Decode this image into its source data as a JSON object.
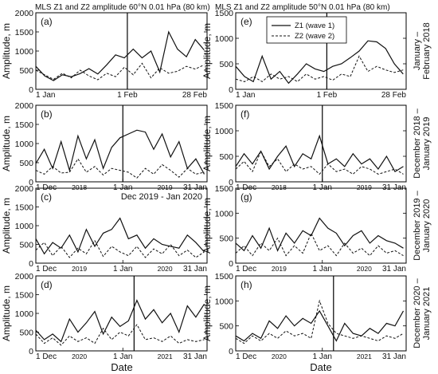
{
  "figure": {
    "titles": [
      "MLS Z1 and Z2 amplitude 60°N  0.01 hPa (80 km)",
      "MLS Z1 and Z2 amplitude 50°N  0.01 hPa (80 km)"
    ],
    "ylabel": "Amplitude, m",
    "xlabel": "Date",
    "row_labels": [
      "January – February 2018",
      "December 2018 – January 2019",
      "December 2019 – January 2020",
      "December 2020 – January 2021"
    ],
    "legend": [
      "Z1 (wave 1)",
      "Z2 (wave 2)"
    ],
    "colors": {
      "z1": "#111111",
      "z2": "#111111",
      "frame": "#000000"
    }
  },
  "chart_data": [
    {
      "type": "line",
      "panel": "(a)",
      "annotation": "",
      "ylim": [
        0,
        2000
      ],
      "yticks": [
        0,
        500,
        1000,
        1500,
        2000
      ],
      "xticks": [
        "1 Jan",
        "1 Feb",
        "28 Feb"
      ],
      "year_labels": [],
      "event_line": "1 Feb",
      "series": [
        {
          "name": "Z1 (wave 1)",
          "x": [
            0,
            3,
            6,
            9,
            12,
            15,
            18,
            21,
            24,
            27,
            30,
            33,
            36,
            39,
            42,
            45,
            48,
            51,
            54,
            57
          ],
          "values": [
            600,
            350,
            230,
            380,
            330,
            410,
            540,
            400,
            640,
            900,
            820,
            1050,
            820,
            1000,
            450,
            1500,
            1050,
            850,
            1300,
            1030
          ]
        },
        {
          "name": "Z2 (wave 2)",
          "x": [
            0,
            3,
            6,
            9,
            12,
            15,
            18,
            21,
            24,
            27,
            30,
            33,
            36,
            39,
            42,
            45,
            48,
            51,
            54,
            57
          ],
          "values": [
            500,
            380,
            260,
            420,
            300,
            500,
            350,
            250,
            420,
            330,
            580,
            380,
            680,
            300,
            560,
            420,
            470,
            600,
            530,
            640
          ]
        }
      ]
    },
    {
      "type": "line",
      "panel": "(b)",
      "annotation": "",
      "ylim": [
        0,
        2000
      ],
      "yticks": [
        0,
        500,
        1000,
        1500,
        2000
      ],
      "xticks": [
        "1 Dec",
        "1 Jan",
        "31 Jan"
      ],
      "year_labels": [
        "2018",
        "2019"
      ],
      "event_line": "1 Jan",
      "series": [
        {
          "name": "Z1 (wave 1)",
          "x": [
            0,
            3,
            6,
            9,
            12,
            15,
            18,
            21,
            24,
            27,
            30,
            33,
            36,
            39,
            42,
            45,
            48,
            51,
            54,
            57,
            60
          ],
          "values": [
            480,
            850,
            350,
            1050,
            300,
            1200,
            600,
            1100,
            350,
            900,
            1150,
            1250,
            1350,
            1300,
            850,
            1250,
            650,
            1050,
            350,
            600,
            200
          ]
        },
        {
          "name": "Z2 (wave 2)",
          "x": [
            0,
            3,
            6,
            9,
            12,
            15,
            18,
            21,
            24,
            27,
            30,
            33,
            36,
            39,
            42,
            45,
            48,
            51,
            54,
            57,
            60
          ],
          "values": [
            300,
            200,
            400,
            230,
            250,
            600,
            250,
            400,
            180,
            350,
            300,
            250,
            100,
            350,
            200,
            450,
            300,
            120,
            350,
            200,
            250
          ]
        }
      ]
    },
    {
      "type": "line",
      "panel": "(c)",
      "annotation": "Dec 2019 - Jan 2020",
      "ylim": [
        0,
        2000
      ],
      "yticks": [
        0,
        500,
        1000,
        1500,
        2000
      ],
      "xticks": [
        "1 Dec",
        "1 Jan",
        "31 Jan"
      ],
      "year_labels": [
        "2019",
        "2020"
      ],
      "event_line": "",
      "series": [
        {
          "name": "Z1 (wave 1)",
          "x": [
            0,
            3,
            6,
            9,
            12,
            15,
            18,
            21,
            24,
            27,
            30,
            33,
            36,
            39,
            42,
            45,
            48,
            51,
            54,
            57,
            60
          ],
          "values": [
            650,
            250,
            550,
            400,
            750,
            300,
            900,
            450,
            800,
            900,
            1200,
            650,
            750,
            400,
            650,
            500,
            450,
            400,
            750,
            550,
            300
          ]
        },
        {
          "name": "Z2 (wave 2)",
          "x": [
            0,
            3,
            6,
            9,
            12,
            15,
            18,
            21,
            24,
            27,
            30,
            33,
            36,
            39,
            42,
            45,
            48,
            51,
            54,
            57,
            60
          ],
          "values": [
            350,
            550,
            200,
            450,
            150,
            400,
            250,
            600,
            180,
            450,
            300,
            200,
            450,
            150,
            380,
            250,
            500,
            200,
            350,
            150,
            300
          ]
        }
      ]
    },
    {
      "type": "line",
      "panel": "(d)",
      "annotation": "",
      "ylim": [
        0,
        2000
      ],
      "yticks": [
        0,
        500,
        1000,
        1500,
        2000
      ],
      "xticks": [
        "1 Dec",
        "1 Jan",
        "31 Jan"
      ],
      "year_labels": [
        "2020",
        "2021"
      ],
      "event_line": "5 Jan",
      "series": [
        {
          "name": "Z1 (wave 1)",
          "x": [
            0,
            3,
            6,
            9,
            12,
            15,
            18,
            21,
            24,
            27,
            30,
            33,
            36,
            39,
            42,
            45,
            48,
            51,
            54,
            57,
            60
          ],
          "values": [
            550,
            300,
            450,
            250,
            850,
            500,
            750,
            1050,
            450,
            900,
            650,
            800,
            1350,
            850,
            1100,
            750,
            1000,
            500,
            1200,
            900,
            1250
          ]
        },
        {
          "name": "Z2 (wave 2)",
          "x": [
            0,
            3,
            6,
            9,
            12,
            15,
            18,
            21,
            24,
            27,
            30,
            33,
            36,
            39,
            42,
            45,
            48,
            51,
            54,
            57,
            60
          ],
          "values": [
            450,
            200,
            350,
            150,
            400,
            250,
            350,
            200,
            600,
            300,
            500,
            400,
            700,
            300,
            350,
            250,
            400,
            200,
            300,
            250,
            300
          ]
        }
      ]
    },
    {
      "type": "line",
      "panel": "(e)",
      "annotation": "",
      "ylim": [
        0,
        1500
      ],
      "yticks": [
        0,
        500,
        1000,
        1500
      ],
      "xticks": [
        "1 Jan",
        "1 Feb",
        "28 Feb"
      ],
      "year_labels": [],
      "event_line": "1 Feb",
      "series": [
        {
          "name": "Z1 (wave 1)",
          "x": [
            0,
            3,
            6,
            9,
            12,
            15,
            18,
            21,
            24,
            27,
            30,
            33,
            36,
            39,
            42,
            45,
            48,
            51,
            54,
            57
          ],
          "values": [
            450,
            250,
            150,
            650,
            200,
            350,
            120,
            300,
            500,
            400,
            350,
            450,
            500,
            620,
            750,
            950,
            930,
            800,
            500,
            300
          ]
        },
        {
          "name": "Z2 (wave 2)",
          "x": [
            0,
            3,
            6,
            9,
            12,
            15,
            18,
            21,
            24,
            27,
            30,
            33,
            36,
            39,
            42,
            45,
            48,
            51,
            54,
            57
          ],
          "values": [
            200,
            150,
            250,
            150,
            300,
            200,
            250,
            150,
            300,
            200,
            250,
            180,
            300,
            250,
            650,
            350,
            450,
            380,
            330,
            380
          ]
        }
      ]
    },
    {
      "type": "line",
      "panel": "(f)",
      "annotation": "",
      "ylim": [
        0,
        1500
      ],
      "yticks": [
        0,
        500,
        1000,
        1500
      ],
      "xticks": [
        "1 Dec",
        "1 Jan",
        "31 Jan"
      ],
      "year_labels": [
        "2018",
        "2019"
      ],
      "event_line": "1 Jan",
      "series": [
        {
          "name": "Z1 (wave 1)",
          "x": [
            0,
            3,
            6,
            9,
            12,
            15,
            18,
            21,
            24,
            27,
            30,
            33,
            36,
            39,
            42,
            45,
            48,
            51,
            54,
            57,
            60
          ],
          "values": [
            300,
            550,
            350,
            600,
            250,
            500,
            700,
            300,
            550,
            450,
            900,
            350,
            450,
            300,
            550,
            350,
            450,
            250,
            500,
            200,
            300
          ]
        },
        {
          "name": "Z2 (wave 2)",
          "x": [
            0,
            3,
            6,
            9,
            12,
            15,
            18,
            21,
            24,
            27,
            30,
            33,
            36,
            39,
            42,
            45,
            48,
            51,
            54,
            57,
            60
          ],
          "values": [
            250,
            400,
            200,
            600,
            300,
            450,
            200,
            350,
            250,
            300,
            150,
            350,
            200,
            250,
            150,
            300,
            250,
            150,
            200,
            250,
            150
          ]
        }
      ]
    },
    {
      "type": "line",
      "panel": "(g)",
      "annotation": "",
      "ylim": [
        0,
        1500
      ],
      "yticks": [
        0,
        500,
        1000,
        1500
      ],
      "xticks": [
        "1 Dec",
        "1 Jan",
        "31 Jan"
      ],
      "year_labels": [
        "2019",
        "2020"
      ],
      "event_line": "",
      "series": [
        {
          "name": "Z1 (wave 1)",
          "x": [
            0,
            3,
            6,
            9,
            12,
            15,
            18,
            21,
            24,
            27,
            30,
            33,
            36,
            39,
            42,
            45,
            48,
            51,
            54,
            57,
            60
          ],
          "values": [
            400,
            250,
            550,
            300,
            700,
            250,
            600,
            400,
            650,
            550,
            900,
            700,
            600,
            350,
            550,
            650,
            400,
            550,
            450,
            400,
            300
          ]
        },
        {
          "name": "Z2 (wave 2)",
          "x": [
            0,
            3,
            6,
            9,
            12,
            15,
            18,
            21,
            24,
            27,
            30,
            33,
            36,
            39,
            42,
            45,
            48,
            51,
            54,
            57,
            60
          ],
          "values": [
            200,
            350,
            150,
            400,
            250,
            500,
            150,
            350,
            200,
            600,
            250,
            350,
            150,
            400,
            200,
            300,
            150,
            350,
            200,
            250,
            150
          ]
        }
      ]
    },
    {
      "type": "line",
      "panel": "(h)",
      "annotation": "",
      "ylim": [
        0,
        1500
      ],
      "yticks": [
        0,
        500,
        1000,
        1500
      ],
      "xticks": [
        "1 Dec",
        "1 Jan",
        "31 Jan"
      ],
      "year_labels": [
        "2020",
        "2021"
      ],
      "event_line": "5 Jan",
      "series": [
        {
          "name": "Z1 (wave 1)",
          "x": [
            0,
            3,
            6,
            9,
            12,
            15,
            18,
            21,
            24,
            27,
            30,
            33,
            36,
            39,
            42,
            45,
            48,
            51,
            54,
            57,
            60
          ],
          "values": [
            300,
            200,
            350,
            250,
            600,
            450,
            700,
            500,
            650,
            550,
            800,
            500,
            200,
            550,
            350,
            300,
            450,
            350,
            550,
            500,
            800
          ]
        },
        {
          "name": "Z2 (wave 2)",
          "x": [
            0,
            3,
            6,
            9,
            12,
            15,
            18,
            21,
            24,
            27,
            30,
            33,
            36,
            39,
            42,
            45,
            48,
            51,
            54,
            57,
            60
          ],
          "values": [
            250,
            150,
            300,
            200,
            350,
            250,
            400,
            300,
            350,
            250,
            1000,
            550,
            350,
            300,
            250,
            300,
            250,
            200,
            300,
            250,
            350
          ]
        }
      ]
    }
  ]
}
